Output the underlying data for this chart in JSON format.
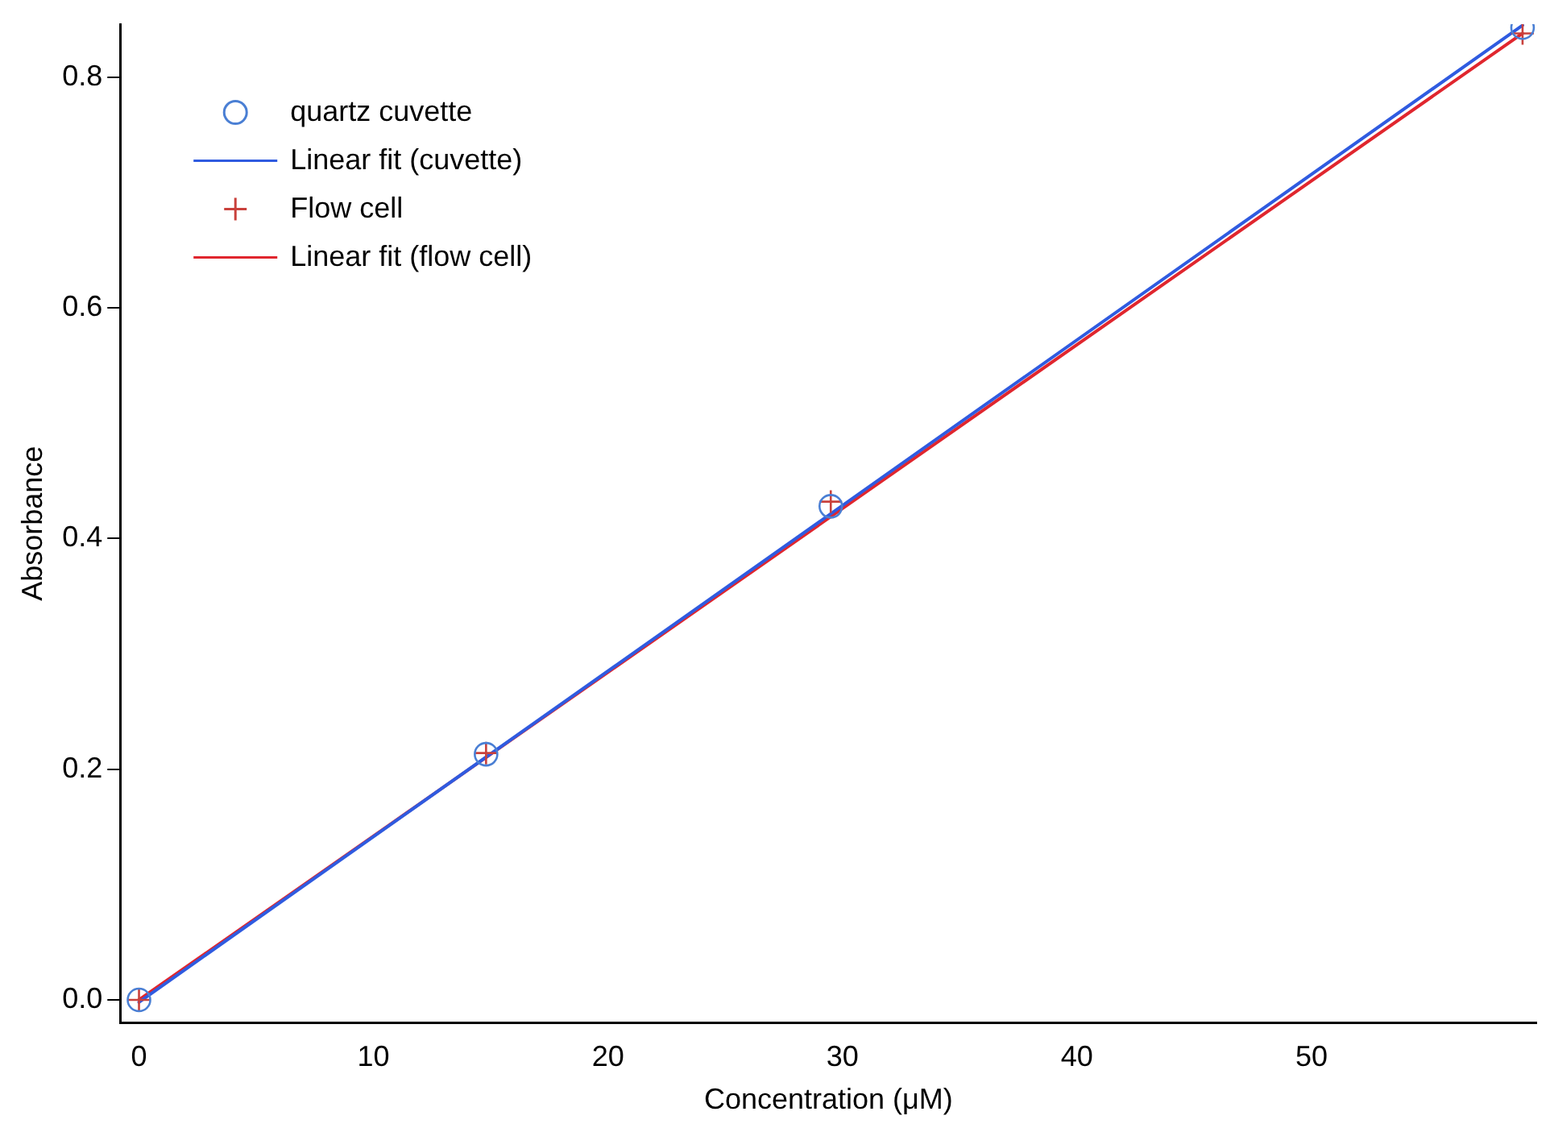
{
  "chart_data": {
    "type": "scatter",
    "xlabel": "Concentration (μM)",
    "ylabel": "Absorbance",
    "xlim": [
      -0.8,
      59.6
    ],
    "ylim": [
      -0.02,
      0.846
    ],
    "xticks": [
      0,
      10,
      20,
      30,
      40,
      50
    ],
    "yticks": [
      {
        "value": 0,
        "label": "0.0"
      },
      {
        "value": 0.2,
        "label": "0.2"
      },
      {
        "value": 0.4,
        "label": "0.4"
      },
      {
        "value": 0.6,
        "label": "0.6"
      },
      {
        "value": 0.8,
        "label": "0.8"
      }
    ],
    "grid": false,
    "legend": "top left",
    "series": [
      {
        "name": "quartz cuvette",
        "type": "scatter",
        "marker": "circle",
        "color": "#4a7fd4",
        "x": [
          0,
          14.8,
          29.5,
          59
        ],
        "values": [
          0,
          0.213,
          0.428,
          0.843
        ]
      },
      {
        "name": "Linear fit (cuvette)",
        "type": "line",
        "marker": "none",
        "color": "#2f5be0",
        "x": [
          0,
          59
        ],
        "values": [
          -0.002,
          0.845
        ]
      },
      {
        "name": "Flow cell",
        "type": "scatter",
        "marker": "cross",
        "color": "#c9413c",
        "x": [
          0,
          14.8,
          29.5,
          59
        ],
        "values": [
          0,
          0.214,
          0.432,
          0.838
        ]
      },
      {
        "name": "Linear fit (flow cell)",
        "type": "line",
        "marker": "none",
        "color": "#e0262e",
        "x": [
          0,
          59
        ],
        "values": [
          0,
          0.838
        ]
      }
    ]
  }
}
